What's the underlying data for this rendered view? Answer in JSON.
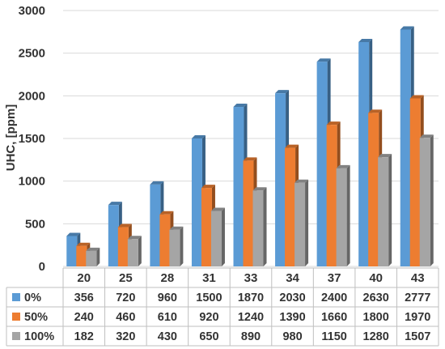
{
  "chart_data": {
    "type": "bar",
    "title": "",
    "xlabel": "",
    "ylabel": "UHC, [ppm]",
    "ylim": [
      0,
      3000
    ],
    "yticks": [
      0,
      500,
      1000,
      1500,
      2000,
      2500,
      3000
    ],
    "grid": true,
    "legend": "data-table",
    "style": "3d-column",
    "categories": [
      "20",
      "25",
      "28",
      "31",
      "33",
      "34",
      "37",
      "40",
      "43"
    ],
    "series": [
      {
        "name": "0%",
        "color": "#5b9bd5",
        "values": [
          356,
          720,
          960,
          1500,
          1870,
          2030,
          2400,
          2630,
          2777
        ]
      },
      {
        "name": "50%",
        "color": "#ed7d31",
        "values": [
          240,
          460,
          610,
          920,
          1240,
          1390,
          1660,
          1800,
          1970
        ]
      },
      {
        "name": "100%",
        "color": "#a5a5a5",
        "values": [
          182,
          320,
          430,
          650,
          890,
          980,
          1150,
          1280,
          1507
        ]
      }
    ]
  }
}
